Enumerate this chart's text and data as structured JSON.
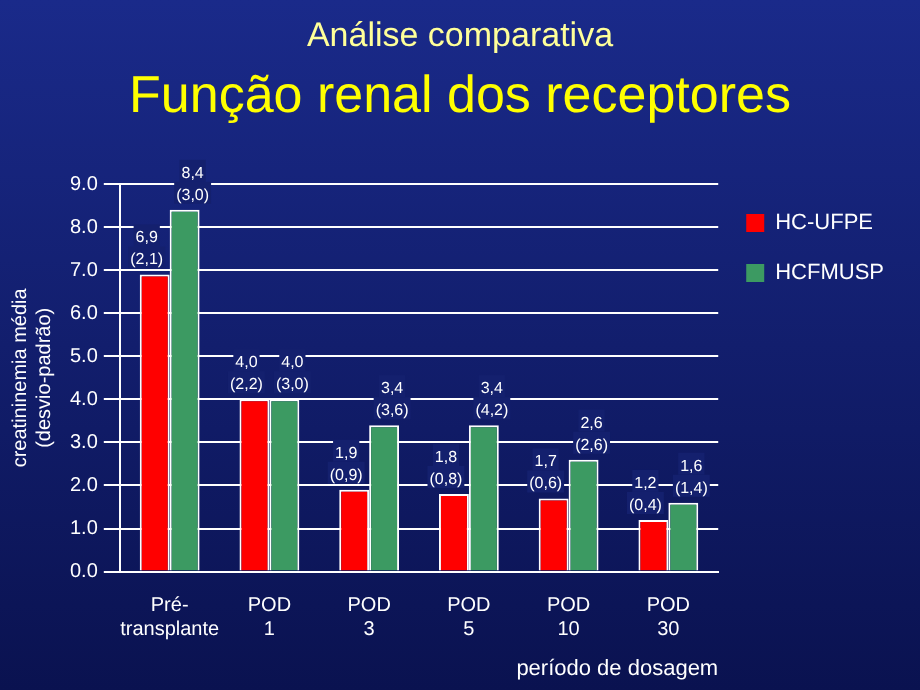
{
  "chart_data": {
    "type": "bar",
    "title": "Análise comparativa",
    "subtitle": "Função renal dos receptores",
    "xlabel": "período de dosagem",
    "ylabel": "creatininemia média (desvio-padrão)",
    "categories": [
      "Pré- transplante",
      "POD 1",
      "POD 3",
      "POD 5",
      "POD 10",
      "POD 30"
    ],
    "series": [
      {
        "name": "HC-UFPE",
        "color": "#ff0000",
        "values": [
          6.9,
          4.0,
          1.9,
          1.8,
          1.7,
          1.2
        ],
        "value_labels": [
          "6,9 (2,1)",
          "4,0 (2,2)",
          "1,9 (0,9)",
          "1,8 (0,8)",
          "1,7 (0,6)",
          "1,2 (0,4)"
        ]
      },
      {
        "name": "HCFMUSP",
        "color": "#3c9a62",
        "values": [
          8.4,
          4.0,
          3.4,
          3.4,
          2.6,
          1.6
        ],
        "value_labels": [
          "8,4 (3,0)",
          "4,0 (3,0)",
          "3,4 (3,6)",
          "3,4 (4,2)",
          "2,6 (2,6)",
          "1,6 (1,4)"
        ]
      }
    ],
    "ylim": [
      0,
      9
    ],
    "yticks": [
      {
        "value": 0,
        "label": "0.0"
      },
      {
        "value": 1,
        "label": "1.0"
      },
      {
        "value": 2,
        "label": "2.0"
      },
      {
        "value": 3,
        "label": "3.0"
      },
      {
        "value": 4,
        "label": "4.0"
      },
      {
        "value": 5,
        "label": "5.0"
      },
      {
        "value": 6,
        "label": "6.0"
      },
      {
        "value": 7,
        "label": "7.0"
      },
      {
        "value": 8,
        "label": "8.0"
      },
      {
        "value": 9,
        "label": "9.0"
      }
    ],
    "grid": "y",
    "legend": "right"
  }
}
